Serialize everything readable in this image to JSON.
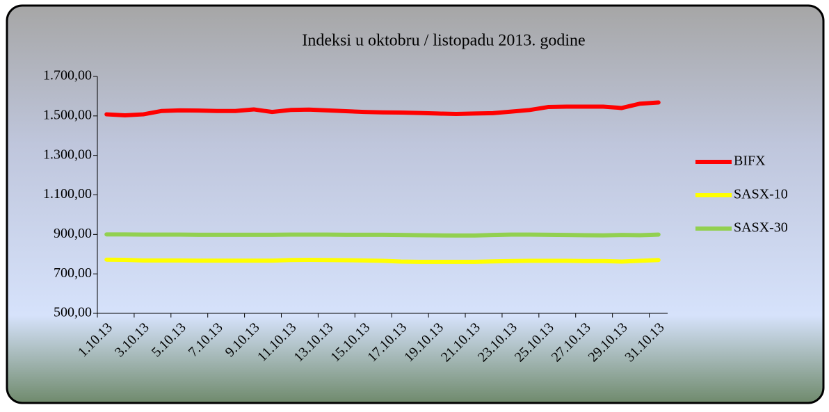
{
  "chart_data": {
    "type": "line",
    "title": "Indeksi u oktobru / listopadu 2013. godine",
    "categories": [
      "1.10.13",
      null,
      "3.10.13",
      null,
      "5.10.13",
      null,
      "7.10.13",
      null,
      "9.10.13",
      null,
      "11.10.13",
      null,
      "13.10.13",
      null,
      "15.10.13",
      null,
      "17.10.13",
      null,
      "19.10.13",
      null,
      "21.10.13",
      null,
      "23.10.13",
      null,
      "25.10.13",
      null,
      "27.10.13",
      null,
      "29.10.13",
      null,
      "31.10.13"
    ],
    "series": [
      {
        "name": "BIFX",
        "color": "#ff0000",
        "values": [
          1508,
          1503,
          1508,
          1525,
          1528,
          1527,
          1525,
          1525,
          1533,
          1520,
          1530,
          1532,
          1528,
          1524,
          1520,
          1518,
          1517,
          1515,
          1512,
          1510,
          1512,
          1514,
          1522,
          1530,
          1545,
          1547,
          1547,
          1547,
          1540,
          1562,
          1568
        ]
      },
      {
        "name": "SASX-10",
        "color": "#ffff00",
        "values": [
          772,
          771,
          768,
          768,
          768,
          767,
          767,
          767,
          767,
          767,
          770,
          771,
          770,
          769,
          768,
          766,
          762,
          761,
          761,
          761,
          761,
          763,
          765,
          766,
          766,
          766,
          765,
          765,
          762,
          766,
          770
        ]
      },
      {
        "name": "SASX-30",
        "color": "#92d050",
        "values": [
          900,
          900,
          899,
          899,
          899,
          898,
          898,
          898,
          898,
          898,
          899,
          899,
          899,
          898,
          898,
          898,
          897,
          896,
          895,
          894,
          894,
          897,
          899,
          899,
          898,
          897,
          896,
          895,
          897,
          896,
          899
        ]
      }
    ],
    "ylim": [
      500,
      1700
    ],
    "yticks": [
      {
        "value": 500,
        "label": "500,00"
      },
      {
        "value": 700,
        "label": "700,00"
      },
      {
        "value": 900,
        "label": "900,00"
      },
      {
        "value": 1100,
        "label": "1.100,00"
      },
      {
        "value": 1300,
        "label": "1.300,00"
      },
      {
        "value": 1500,
        "label": "1.500,00"
      },
      {
        "value": 1700,
        "label": "1.700,00"
      }
    ],
    "legend": "right"
  }
}
